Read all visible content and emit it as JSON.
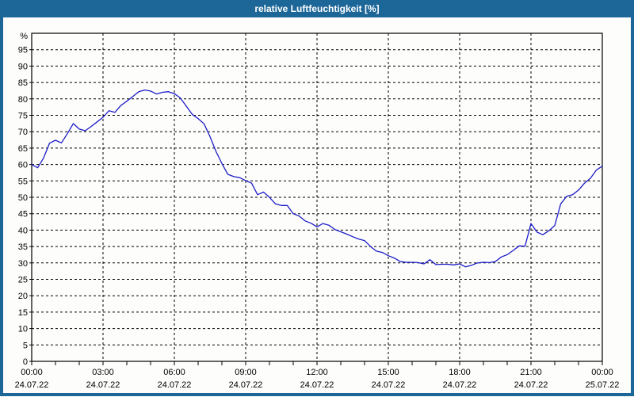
{
  "window": {
    "title": "relative Luftfeuchtigkeit [%]"
  },
  "colors": {
    "titlebar_bg": "#1d6698",
    "frame": "#1d6698",
    "title_text": "#ffffff",
    "plot_bg": "#fdfdfb",
    "grid": "#000000",
    "axis": "#000000",
    "label_text": "#000000",
    "series_line": "#1c1cc8"
  },
  "chart_data": {
    "type": "line",
    "title": "relative Luftfeuchtigkeit [%]",
    "ylabel": "%",
    "xlabel": "",
    "ylim": [
      0,
      100
    ],
    "ytick_step": 5,
    "ytick_label_min": 0,
    "ytick_label_max": 95,
    "grid": "dashed",
    "legend": "none",
    "x_axis": {
      "unit": "time-of-day",
      "range_hours": [
        0,
        24
      ],
      "minor_tick_hours": 1,
      "major_ticks": [
        {
          "hour": 0,
          "time": "00:00",
          "date": "24.07.22"
        },
        {
          "hour": 3,
          "time": "03:00",
          "date": "24.07.22"
        },
        {
          "hour": 6,
          "time": "06:00",
          "date": "24.07.22"
        },
        {
          "hour": 9,
          "time": "09:00",
          "date": "24.07.22"
        },
        {
          "hour": 12,
          "time": "12:00",
          "date": "24.07.22"
        },
        {
          "hour": 15,
          "time": "15:00",
          "date": "24.07.22"
        },
        {
          "hour": 18,
          "time": "18:00",
          "date": "24.07.22"
        },
        {
          "hour": 21,
          "time": "21:00",
          "date": "24.07.22"
        },
        {
          "hour": 24,
          "time": "00:00",
          "date": "25.07.22"
        }
      ]
    },
    "series": [
      {
        "name": "relative Luftfeuchtigkeit",
        "start_hour": 0,
        "step_hours": 0.25,
        "values": [
          60,
          59,
          62,
          66.5,
          67.4,
          66.6,
          69.4,
          72.5,
          70.8,
          70.3,
          71.6,
          73,
          74.4,
          76.4,
          75.9,
          78,
          79.3,
          80.7,
          82.2,
          82.7,
          82.4,
          81.5,
          82,
          82.2,
          81.6,
          80.3,
          77.8,
          75.3,
          74,
          72.4,
          68.5,
          64,
          60.3,
          57,
          56.3,
          56,
          55.1,
          54.3,
          50.8,
          51.6,
          50,
          48,
          47.5,
          47.5,
          45,
          44.3,
          42.8,
          42.1,
          41,
          42,
          41.5,
          40.2,
          39.5,
          38.8,
          38,
          37.3,
          36.8,
          35,
          33.6,
          33.2,
          32.2,
          31.5,
          30.4,
          30.2,
          30.2,
          30.1,
          29.7,
          31,
          29.5,
          29.6,
          29.6,
          29.4,
          29.7,
          28.8,
          29.3,
          30,
          30.2,
          30.1,
          30.4,
          31.8,
          32.5,
          33.8,
          35.2,
          35.1,
          42,
          39.4,
          38.6,
          39.8,
          41.4,
          48,
          50.3,
          50.8,
          52.2,
          54.3,
          55.8,
          58.3,
          59.5
        ]
      }
    ]
  }
}
